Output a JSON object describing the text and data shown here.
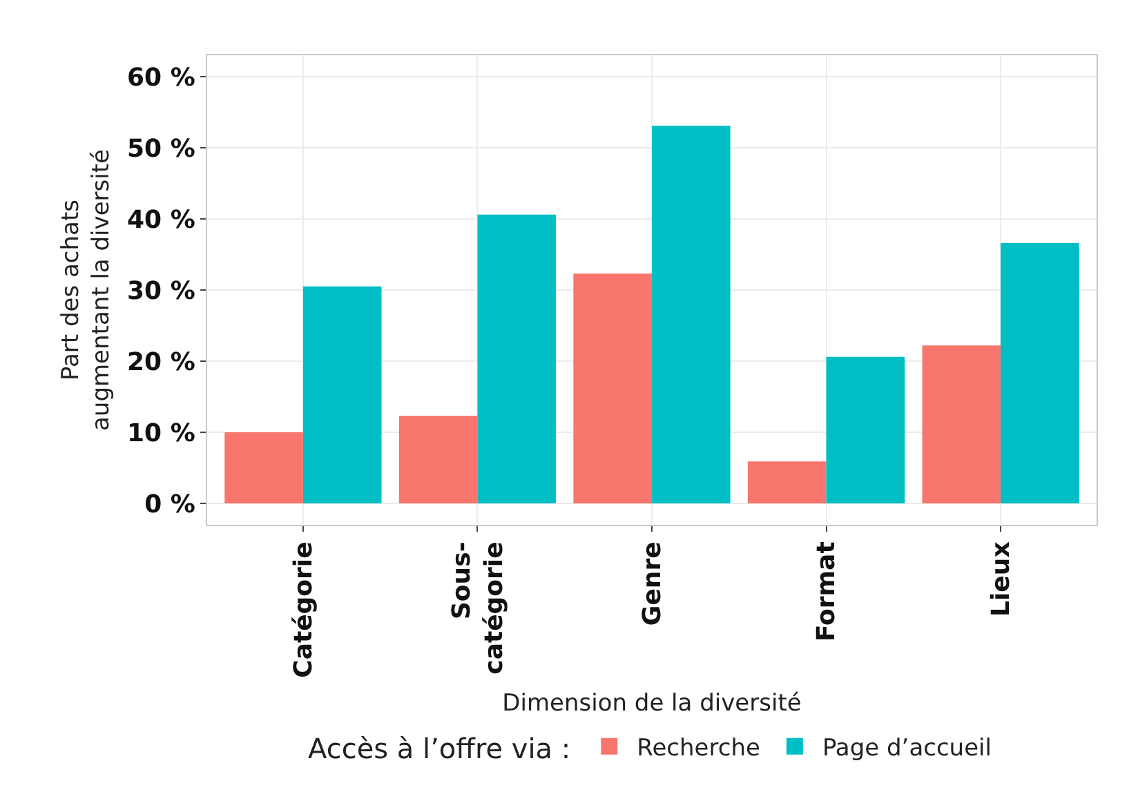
{
  "chart_data": {
    "type": "bar",
    "xlabel": "Dimension de la diversité",
    "ylabel": "Part des achats\naugmentant la diversité",
    "legend_title": "Accès à l’offre via :",
    "categories": [
      "Catégorie",
      "Sous-\ncatégorie",
      "Genre",
      "Format",
      "Lieux"
    ],
    "series": [
      {
        "name": "Recherche",
        "color": "#f8766d",
        "values": [
          10,
          12.3,
          32.3,
          5.9,
          22.2
        ]
      },
      {
        "name": "Page d’accueil",
        "color": "#00bfc4",
        "values": [
          30.5,
          40.6,
          53.1,
          20.6,
          36.6
        ]
      }
    ],
    "ylim": [
      -3,
      63
    ],
    "yticks": [
      {
        "value": 0,
        "label": "0 %"
      },
      {
        "value": 10,
        "label": "10 %"
      },
      {
        "value": 20,
        "label": "20 %"
      },
      {
        "value": 30,
        "label": "30 %"
      },
      {
        "value": 40,
        "label": "40 %"
      },
      {
        "value": 50,
        "label": "50 %"
      },
      {
        "value": 60,
        "label": "60 %"
      }
    ],
    "grid": true,
    "legend": "bottom"
  }
}
